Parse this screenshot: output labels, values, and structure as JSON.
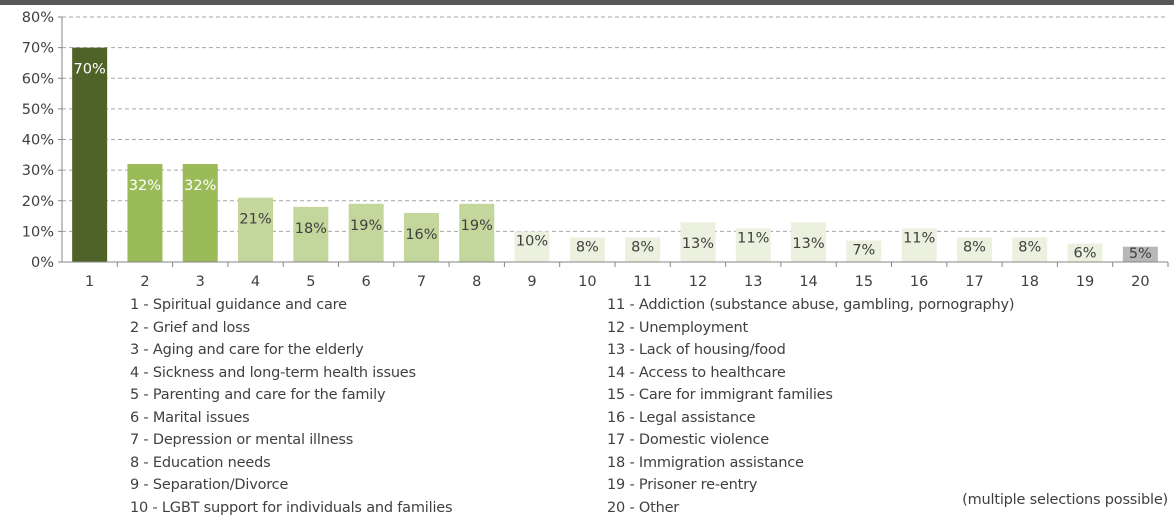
{
  "chart_data": {
    "type": "bar",
    "categories": [
      "1",
      "2",
      "3",
      "4",
      "5",
      "6",
      "7",
      "8",
      "9",
      "10",
      "11",
      "12",
      "13",
      "14",
      "15",
      "16",
      "17",
      "18",
      "19",
      "20"
    ],
    "values": [
      70,
      32,
      32,
      21,
      18,
      19,
      16,
      19,
      10,
      8,
      8,
      13,
      11,
      13,
      7,
      11,
      8,
      8,
      6,
      5
    ],
    "data_labels": [
      "70%",
      "32%",
      "32%",
      "21%",
      "18%",
      "19%",
      "16%",
      "19%",
      "10%",
      "8%",
      "8%",
      "13%",
      "11%",
      "13%",
      "7%",
      "11%",
      "8%",
      "8%",
      "6%",
      "5%"
    ],
    "y_ticks": [
      "0%",
      "10%",
      "20%",
      "30%",
      "40%",
      "50%",
      "60%",
      "70%",
      "80%"
    ],
    "ylim": [
      0,
      80
    ],
    "grid": true,
    "colors": {
      "dark": "#4f6228",
      "mid": "#9bbb59",
      "light": "#c3d69b",
      "pale": "#ebf1de",
      "grey": "#b7b7b7"
    },
    "bar_color_groups": [
      "dark",
      "mid",
      "mid",
      "light",
      "light",
      "light",
      "light",
      "light",
      "pale",
      "pale",
      "pale",
      "pale",
      "pale",
      "pale",
      "pale",
      "pale",
      "pale",
      "pale",
      "pale",
      "grey"
    ]
  },
  "legend_left": [
    "1 - Spiritual guidance and care",
    "2 - Grief and loss",
    "3 - Aging and care for the elderly",
    "4 - Sickness and long-term health issues",
    "5 - Parenting and care for the family",
    "6 - Marital issues",
    "7 - Depression or mental illness",
    "8 - Education needs",
    "9 - Separation/Divorce",
    "10 - LGBT support for individuals and families"
  ],
  "legend_right": [
    "11 - Addiction (substance abuse, gambling, pornography)",
    "12 - Unemployment",
    "13 - Lack of housing/food",
    "14 - Access to healthcare",
    "15 - Care for immigrant families",
    "16 - Legal assistance",
    "17 - Domestic violence",
    "18 - Immigration assistance",
    "19 - Prisoner re-entry",
    "20 - Other"
  ],
  "note": "(multiple selections possible)"
}
